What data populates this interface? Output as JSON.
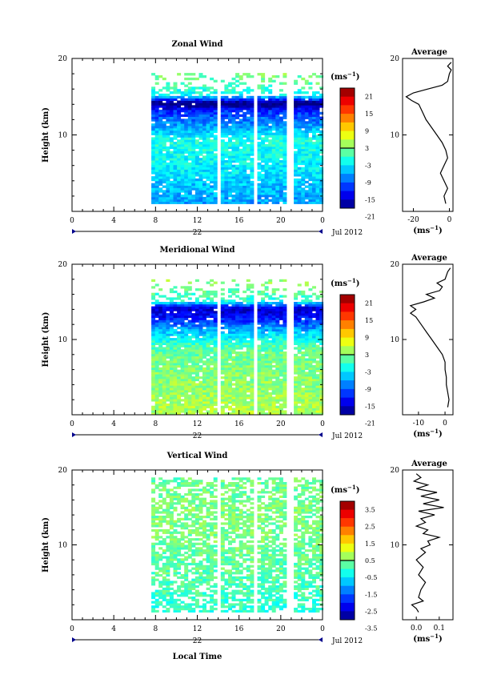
{
  "chart_data": [
    {
      "type": "heatmap",
      "panel": "zonal",
      "title": "Zonal Wind",
      "ylabel": "Height (km)",
      "xlabel": "",
      "ylim": [
        0,
        20
      ],
      "y_ticks": [
        "20",
        "10"
      ],
      "xlim": [
        0,
        24
      ],
      "x_ticks": [
        "0",
        "4",
        "8",
        "12",
        "16",
        "20",
        "0"
      ],
      "date_day": "22",
      "date_label": "Jul 2012",
      "colorbar_unit": "(ms",
      "colorbar_unit_exp": "−1",
      "colorbar_range": [
        -21,
        21
      ],
      "colorbar_ticks": [
        "21",
        "15",
        "9",
        "3",
        "-3",
        "-9",
        "-15",
        "-21"
      ],
      "data_time_range": [
        7.6,
        24
      ],
      "data_height_range": [
        1,
        18
      ],
      "gap_times": [
        14.1,
        17.6,
        20.8
      ],
      "height_profile": [
        {
          "h": 1,
          "v": -9
        },
        {
          "h": 3,
          "v": -8
        },
        {
          "h": 5,
          "v": -6
        },
        {
          "h": 7,
          "v": -5
        },
        {
          "h": 9,
          "v": -4
        },
        {
          "h": 11,
          "v": -9
        },
        {
          "h": 13,
          "v": -14
        },
        {
          "h": 14,
          "v": -22
        },
        {
          "h": 15,
          "v": -6
        },
        {
          "h": 16,
          "v": -3
        },
        {
          "h": 17,
          "v": -1
        },
        {
          "h": 18,
          "v": 0
        }
      ],
      "average": {
        "title": "Average",
        "xlabel": "(ms",
        "xlabel_exp": "−1",
        "x_ticks": [
          "-20",
          "0"
        ],
        "xlim": [
          -26,
          2
        ],
        "profile": [
          {
            "h": 1,
            "v": -2
          },
          {
            "h": 2,
            "v": -3
          },
          {
            "h": 3,
            "v": -1
          },
          {
            "h": 4,
            "v": -3
          },
          {
            "h": 5,
            "v": -5
          },
          {
            "h": 6,
            "v": -3
          },
          {
            "h": 7,
            "v": -1
          },
          {
            "h": 8,
            "v": -2
          },
          {
            "h": 9,
            "v": -4
          },
          {
            "h": 10,
            "v": -7
          },
          {
            "h": 11,
            "v": -10
          },
          {
            "h": 12,
            "v": -13
          },
          {
            "h": 13,
            "v": -15
          },
          {
            "h": 14,
            "v": -17
          },
          {
            "h": 14.5,
            "v": -21
          },
          {
            "h": 15,
            "v": -24
          },
          {
            "h": 15.5,
            "v": -20
          },
          {
            "h": 16,
            "v": -12
          },
          {
            "h": 16.5,
            "v": -4
          },
          {
            "h": 17,
            "v": -1
          },
          {
            "h": 18,
            "v": 0
          },
          {
            "h": 18.5,
            "v": 1
          },
          {
            "h": 19,
            "v": -1
          },
          {
            "h": 19.5,
            "v": 1
          }
        ]
      }
    },
    {
      "type": "heatmap",
      "panel": "meridional",
      "title": "Meridional Wind",
      "ylabel": "Height (km)",
      "xlabel": "",
      "ylim": [
        0,
        20
      ],
      "y_ticks": [
        "20",
        "10"
      ],
      "xlim": [
        0,
        24
      ],
      "x_ticks": [
        "0",
        "4",
        "8",
        "12",
        "16",
        "20",
        "0"
      ],
      "date_day": "22",
      "date_label": "Jul 2012",
      "colorbar_unit": "(ms",
      "colorbar_unit_exp": "−1",
      "colorbar_range": [
        -21,
        21
      ],
      "colorbar_ticks": [
        "21",
        "15",
        "9",
        "3",
        "-3",
        "-9",
        "-15",
        "-21"
      ],
      "data_time_range": [
        7.6,
        24
      ],
      "data_height_range": [
        0,
        18
      ],
      "gap_times": [
        14.1,
        17.6,
        20.8
      ],
      "height_profile": [
        {
          "h": 0,
          "v": 2
        },
        {
          "h": 3,
          "v": 1
        },
        {
          "h": 6,
          "v": 0
        },
        {
          "h": 8,
          "v": -1
        },
        {
          "h": 9,
          "v": -2
        },
        {
          "h": 10,
          "v": -5
        },
        {
          "h": 11,
          "v": -8
        },
        {
          "h": 12,
          "v": -12
        },
        {
          "h": 13,
          "v": -16
        },
        {
          "h": 14,
          "v": -18
        },
        {
          "h": 15,
          "v": -4
        },
        {
          "h": 16,
          "v": -2
        },
        {
          "h": 17,
          "v": 0
        },
        {
          "h": 18,
          "v": 1
        }
      ],
      "average": {
        "title": "Average",
        "xlabel": "(ms",
        "xlabel_exp": "−1",
        "x_ticks": [
          "-10",
          "0"
        ],
        "xlim": [
          -16,
          3
        ],
        "profile": [
          {
            "h": 1,
            "v": 1
          },
          {
            "h": 2,
            "v": 1.5
          },
          {
            "h": 3,
            "v": 1
          },
          {
            "h": 4,
            "v": 0.5
          },
          {
            "h": 5,
            "v": 0.5
          },
          {
            "h": 6,
            "v": 0
          },
          {
            "h": 7,
            "v": 0
          },
          {
            "h": 8,
            "v": -1
          },
          {
            "h": 9,
            "v": -3
          },
          {
            "h": 10,
            "v": -5
          },
          {
            "h": 11,
            "v": -7
          },
          {
            "h": 12,
            "v": -9
          },
          {
            "h": 13,
            "v": -11
          },
          {
            "h": 13.5,
            "v": -13
          },
          {
            "h": 14,
            "v": -11
          },
          {
            "h": 14.5,
            "v": -13
          },
          {
            "h": 15,
            "v": -8
          },
          {
            "h": 15.5,
            "v": -4
          },
          {
            "h": 16,
            "v": -7
          },
          {
            "h": 16.5,
            "v": -2
          },
          {
            "h": 17,
            "v": -1
          },
          {
            "h": 17.5,
            "v": -3
          },
          {
            "h": 18,
            "v": 0
          },
          {
            "h": 19,
            "v": 1
          },
          {
            "h": 19.5,
            "v": 2
          }
        ]
      }
    },
    {
      "type": "heatmap",
      "panel": "vertical",
      "title": "Vertical Wind",
      "ylabel": "Height (km)",
      "xlabel": "Local Time",
      "ylim": [
        0,
        20
      ],
      "y_ticks": [
        "20",
        "10"
      ],
      "xlim": [
        0,
        24
      ],
      "x_ticks": [
        "0",
        "4",
        "8",
        "12",
        "16",
        "20",
        "0"
      ],
      "date_day": "22",
      "date_label": "Jul 2012",
      "colorbar_unit": "(ms",
      "colorbar_unit_exp": "−1",
      "colorbar_range": [
        -3.5,
        3.5
      ],
      "colorbar_ticks": [
        "3.5",
        "2.5",
        "1.5",
        "0.5",
        "-0.5",
        "-1.5",
        "-2.5",
        "-3.5"
      ],
      "data_time_range": [
        7.6,
        24
      ],
      "data_height_range": [
        1,
        19
      ],
      "gap_times": [
        14.1,
        17.6,
        20.8
      ],
      "height_profile": [
        {
          "h": 1,
          "v": -0.6
        },
        {
          "h": 5,
          "v": -0.3
        },
        {
          "h": 10,
          "v": -0.1
        },
        {
          "h": 15,
          "v": 0
        },
        {
          "h": 19,
          "v": -0.2
        }
      ],
      "average": {
        "title": "Average",
        "xlabel": "(ms",
        "xlabel_exp": "−1",
        "x_ticks": [
          "0.0",
          "0.1"
        ],
        "xlim": [
          -0.06,
          0.16
        ],
        "profile": [
          {
            "h": 1,
            "v": 0.01
          },
          {
            "h": 1.5,
            "v": 0.0
          },
          {
            "h": 2,
            "v": -0.02
          },
          {
            "h": 2.5,
            "v": 0.03
          },
          {
            "h": 3,
            "v": 0.01
          },
          {
            "h": 4,
            "v": 0.02
          },
          {
            "h": 5,
            "v": 0.04
          },
          {
            "h": 6,
            "v": 0.01
          },
          {
            "h": 7,
            "v": 0.03
          },
          {
            "h": 8,
            "v": 0.0
          },
          {
            "h": 9,
            "v": 0.04
          },
          {
            "h": 9.5,
            "v": 0.02
          },
          {
            "h": 10,
            "v": 0.06
          },
          {
            "h": 10.5,
            "v": 0.05
          },
          {
            "h": 11,
            "v": 0.1
          },
          {
            "h": 11.5,
            "v": 0.03
          },
          {
            "h": 12,
            "v": 0.05
          },
          {
            "h": 12.5,
            "v": 0.0
          },
          {
            "h": 13,
            "v": 0.04
          },
          {
            "h": 13.5,
            "v": 0.02
          },
          {
            "h": 14,
            "v": 0.08
          },
          {
            "h": 14.5,
            "v": 0.01
          },
          {
            "h": 15,
            "v": 0.12
          },
          {
            "h": 15.5,
            "v": 0.03
          },
          {
            "h": 16,
            "v": 0.1
          },
          {
            "h": 16.5,
            "v": 0.02
          },
          {
            "h": 17,
            "v": 0.09
          },
          {
            "h": 17.5,
            "v": 0.0
          },
          {
            "h": 18,
            "v": 0.05
          },
          {
            "h": 18.5,
            "v": -0.01
          },
          {
            "h": 19,
            "v": 0.02
          },
          {
            "h": 19.5,
            "v": 0.0
          }
        ]
      }
    }
  ]
}
